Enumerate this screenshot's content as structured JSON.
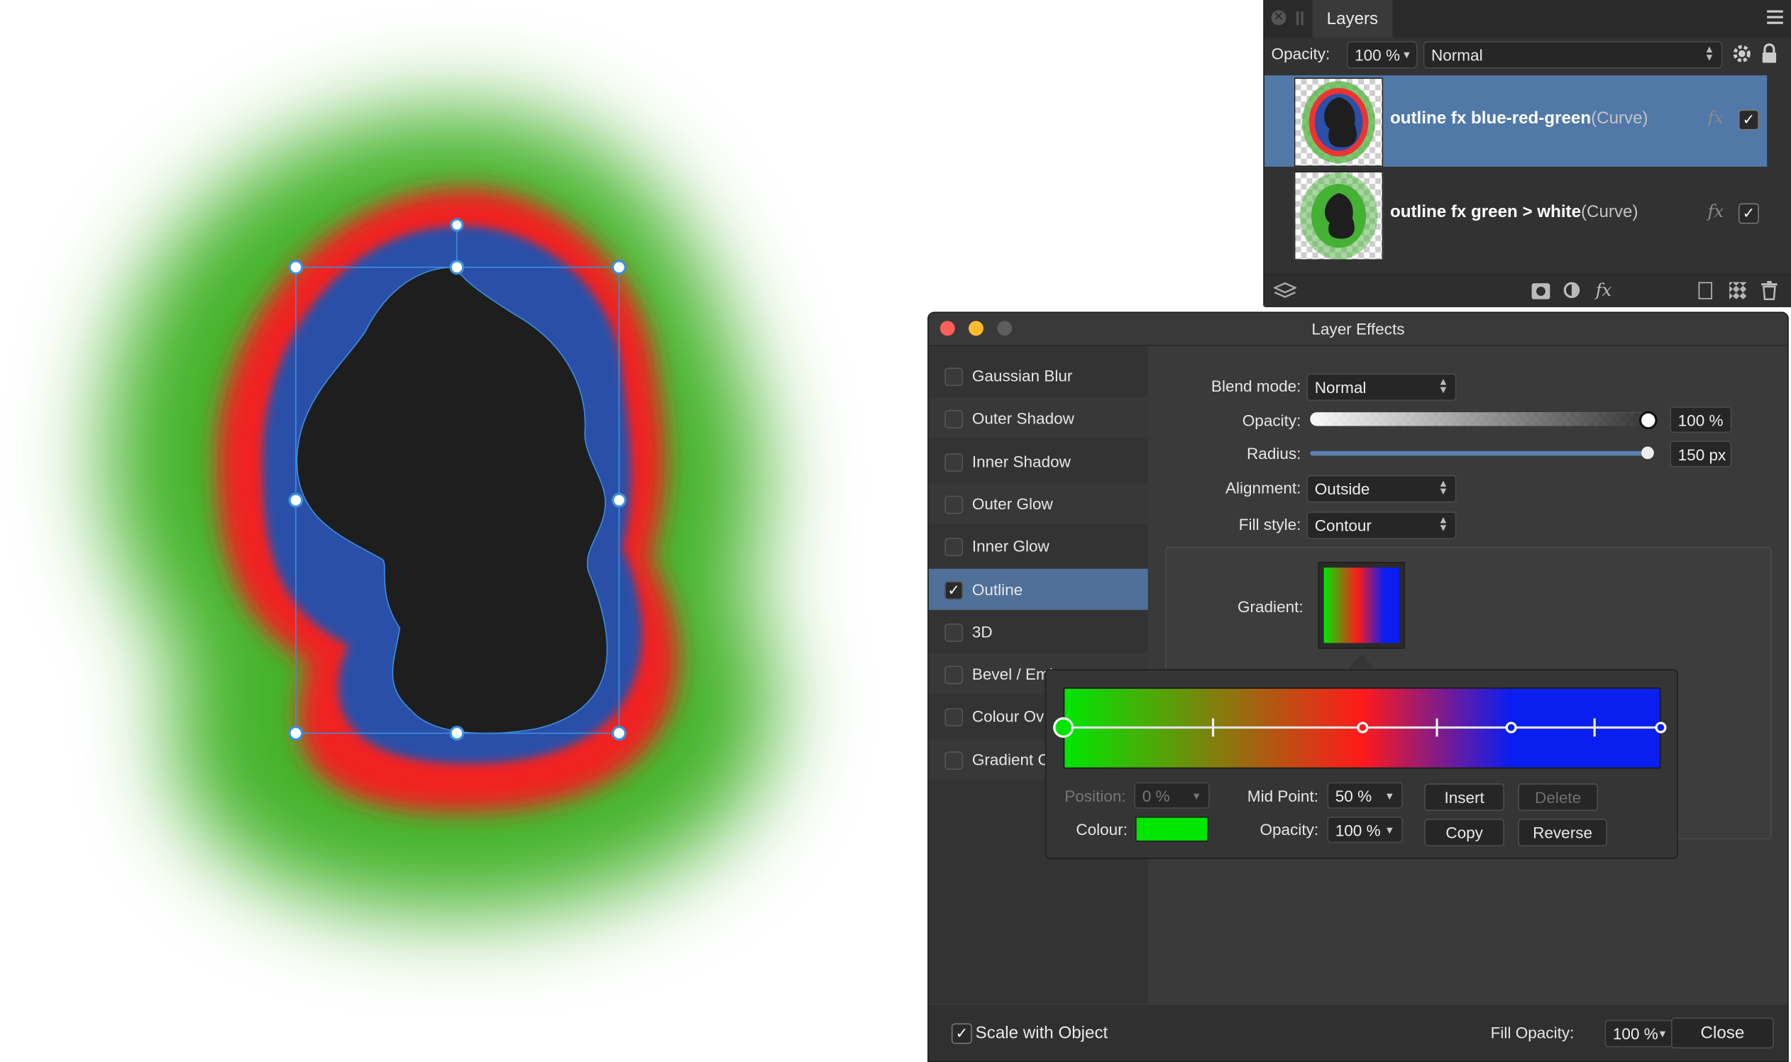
{
  "canvas": {
    "colors": {
      "green": "#44b32a",
      "red": "#f02121",
      "blue": "#2c4fa8",
      "shape": "#1e1e1e",
      "handle": "#3a8fe0"
    }
  },
  "layers_panel": {
    "title": "Layers",
    "opacity_label": "Opacity:",
    "opacity_value": "100 %",
    "blend_mode": "Normal",
    "menu_icon": "hamburger-menu-icon",
    "rows": [
      {
        "name": "outline fx blue-red-green",
        "type": "(Curve)",
        "fx": "fx",
        "visible": "✓",
        "selected": true
      },
      {
        "name": "outline fx green > white",
        "type": "(Curve)",
        "fx": "fx",
        "visible": "✓",
        "selected": false
      }
    ]
  },
  "layer_effects": {
    "title": "Layer Effects",
    "effects": [
      {
        "label": "Gaussian Blur",
        "checked": ""
      },
      {
        "label": "Outer Shadow",
        "checked": ""
      },
      {
        "label": "Inner Shadow",
        "checked": ""
      },
      {
        "label": "Outer Glow",
        "checked": ""
      },
      {
        "label": "Inner Glow",
        "checked": ""
      },
      {
        "label": "Outline",
        "checked": "✓"
      },
      {
        "label": "3D",
        "checked": ""
      },
      {
        "label": "Bevel / Emboss",
        "checked": ""
      },
      {
        "label": "Colour Ov",
        "checked": ""
      },
      {
        "label": "Gradient C",
        "checked": ""
      }
    ],
    "blend_mode_label": "Blend mode:",
    "blend_mode_value": "Normal",
    "opacity_label": "Opacity:",
    "opacity_value": "100 %",
    "opacity_fraction": 1.0,
    "radius_label": "Radius:",
    "radius_value": "150 px",
    "radius_fraction": 1.0,
    "alignment_label": "Alignment:",
    "alignment_value": "Outside",
    "fill_style_label": "Fill style:",
    "fill_style_value": "Contour",
    "gradient_label": "Gradient:",
    "gradient_colors": [
      "#00e600",
      "#ff1a1a",
      "#0a1ef0"
    ],
    "scale_with_object_label": "Scale with Object",
    "scale_with_object_checked": "✓",
    "fill_opacity_label": "Fill Opacity:",
    "fill_opacity_value": "100 %",
    "close_label": "Close"
  },
  "gradient_editor": {
    "position_label": "Position:",
    "position_value": "0 %",
    "midpoint_label": "Mid Point:",
    "midpoint_value": "50 %",
    "colour_label": "Colour:",
    "colour_value": "#00e600",
    "opacity_label": "Opacity:",
    "opacity_value": "100 %",
    "insert_label": "Insert",
    "delete_label": "Delete",
    "copy_label": "Copy",
    "reverse_label": "Reverse",
    "stops": [
      0,
      0.5,
      0.75,
      1
    ],
    "midpoints": [
      0.25,
      0.625,
      0.89
    ]
  }
}
